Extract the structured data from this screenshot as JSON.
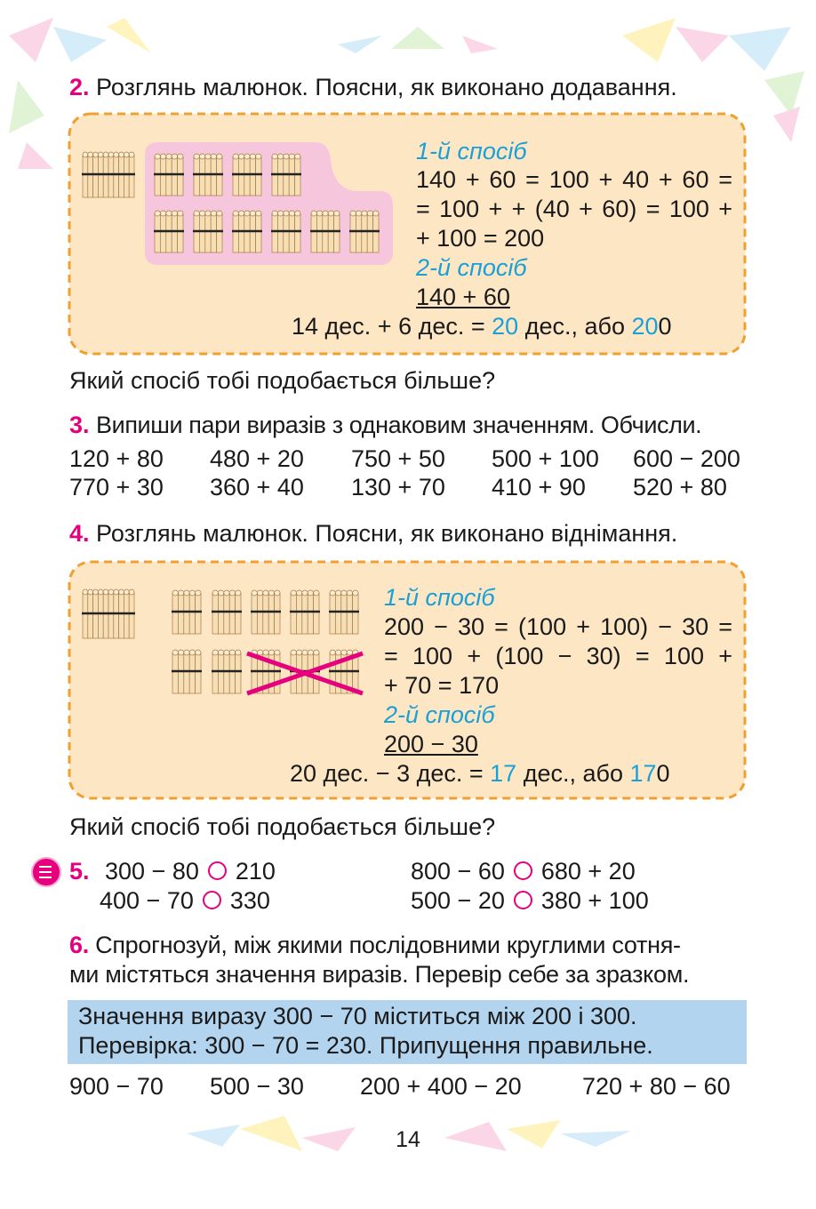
{
  "task_2": {
    "number": "2.",
    "text": "Розглянь малюнок. Поясни, як виконано додавання.",
    "method_1_title": "1-й спосіб",
    "method_1_lines": [
      "140 + 60 = 100 + 40 + 60 =",
      "= 100 + + (40 + 60) = 100 +",
      "+ 100 = 200"
    ],
    "method_2_title": "2-й спосіб",
    "method_2_expression": "140 + 60",
    "result_parts": [
      "14 дес. + 6 дес. = ",
      "20",
      " дес., або ",
      "20",
      "0"
    ],
    "question": "Який спосіб тобі подобається більше?"
  },
  "task_3": {
    "number": "3.",
    "text": "Випиши пари виразів з однаковим значенням. Обчисли.",
    "rows": [
      [
        "120 + 80",
        "480 + 20",
        "750 + 50",
        "500 + 100",
        "600 − 200"
      ],
      [
        "770 + 30",
        "360 + 40",
        "130 + 70",
        "410 + 90",
        "520 + 80"
      ]
    ]
  },
  "task_4": {
    "number": "4.",
    "text": "Розглянь малюнок. Поясни, як виконано віднімання.",
    "method_1_title": "1-й спосіб",
    "method_1_lines": [
      "200 − 30 = (100 + 100) − 30 =",
      "= 100 + (100 − 30) = 100 +",
      "+ 70 = 170"
    ],
    "method_2_title": "2-й спосіб",
    "method_2_expression": "200 − 30",
    "result_parts": [
      "20 дес. − 3 дес. = ",
      "17",
      " дес., або ",
      "17",
      "0"
    ],
    "question": "Який спосіб тобі подобається більше?"
  },
  "task_5": {
    "number": "5.",
    "items": [
      [
        "300 − 80",
        "210"
      ],
      [
        "400 − 70",
        "330"
      ],
      [
        "800 − 60",
        "680 + 20"
      ],
      [
        "500 − 20",
        "380 + 100"
      ]
    ]
  },
  "task_6": {
    "number": "6.",
    "text_lines": [
      "Спрогнозуй, між якими послідовними круглими сотня-",
      "ми містяться значення виразів. Перевір себе за зразком."
    ],
    "example_lines": [
      "Значення виразу 300 − 70 міститься між 200 і 300.",
      "Перевірка: 300 − 70 = 230. Припущення правильне."
    ],
    "expressions": [
      "900 − 70",
      "500 − 30",
      "200 + 400 − 20",
      "720 + 80 − 60"
    ]
  },
  "page_number": "14"
}
